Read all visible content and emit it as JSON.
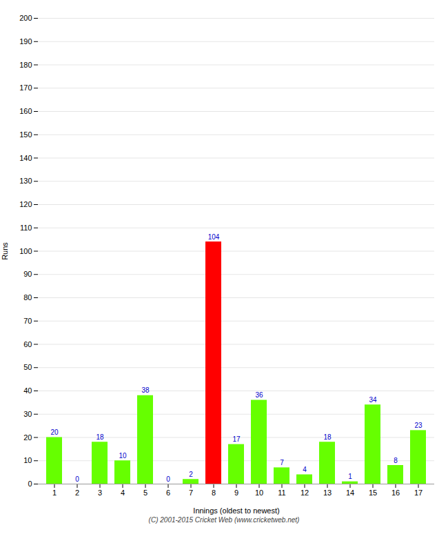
{
  "chart_data": {
    "type": "bar",
    "xlabel": "Innings (oldest to newest)",
    "ylabel": "Runs",
    "categories": [
      "1",
      "2",
      "3",
      "4",
      "5",
      "6",
      "7",
      "8",
      "9",
      "10",
      "11",
      "12",
      "13",
      "14",
      "15",
      "16",
      "17"
    ],
    "values": [
      20,
      0,
      18,
      10,
      38,
      0,
      2,
      104,
      17,
      36,
      7,
      4,
      18,
      1,
      34,
      8,
      23
    ],
    "colors": [
      "#66ff00",
      "#66ff00",
      "#66ff00",
      "#66ff00",
      "#66ff00",
      "#66ff00",
      "#66ff00",
      "#ff0000",
      "#66ff00",
      "#66ff00",
      "#66ff00",
      "#66ff00",
      "#66ff00",
      "#66ff00",
      "#66ff00",
      "#66ff00",
      "#66ff00"
    ],
    "ylim": [
      0,
      200
    ],
    "yticks": [
      0,
      10,
      20,
      30,
      40,
      50,
      60,
      70,
      80,
      90,
      100,
      110,
      120,
      130,
      140,
      150,
      160,
      170,
      180,
      190,
      200
    ],
    "grid": true,
    "data_labels": true,
    "annotations": [
      "(C) 2001-2015 Cricket Web (www.cricketweb.net)"
    ]
  }
}
